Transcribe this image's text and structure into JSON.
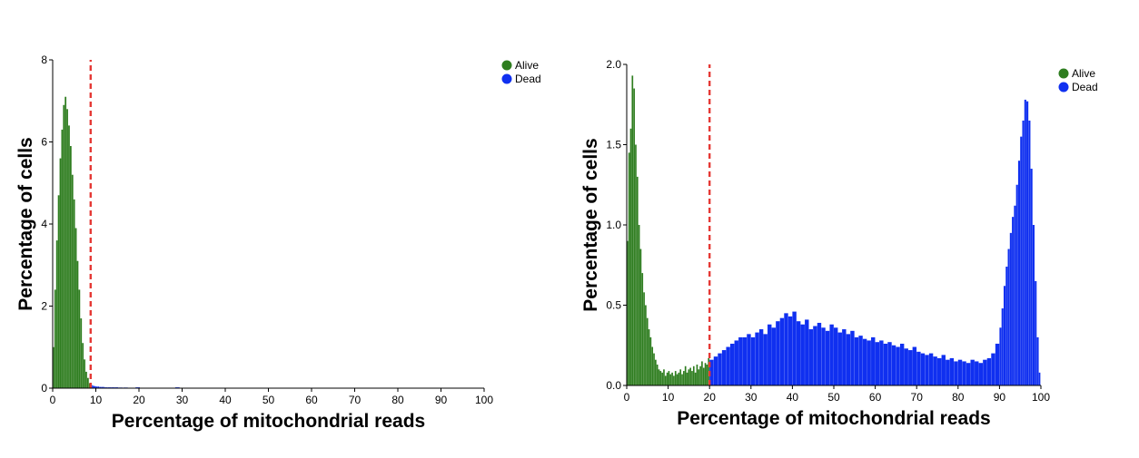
{
  "chart_data": [
    {
      "type": "bar",
      "xlabel": "Percentage of mitochondrial reads",
      "ylabel": "Percentage of cells",
      "xlim": [
        0,
        100
      ],
      "ylim": [
        0,
        8
      ],
      "x_ticks": [
        "0",
        "10",
        "20",
        "30",
        "40",
        "50",
        "60",
        "70",
        "80",
        "90",
        "100"
      ],
      "y_ticks": [
        "0",
        "2",
        "4",
        "6",
        "8"
      ],
      "grid": false,
      "legend": {
        "position": "top-right",
        "items": [
          {
            "label": "Alive",
            "color": "#2e7d1f"
          },
          {
            "label": "Dead",
            "color": "#1030f0"
          }
        ]
      },
      "threshold": {
        "x": 8.8,
        "style": "dashed",
        "color": "#e53935"
      },
      "bin_width": 0.4,
      "series": [
        {
          "name": "Alive",
          "color": "#2e7d1f",
          "x": [
            0.0,
            0.4,
            0.8,
            1.2,
            1.6,
            2.0,
            2.4,
            2.8,
            3.2,
            3.6,
            4.0,
            4.4,
            4.8,
            5.2,
            5.6,
            6.0,
            6.4,
            6.8,
            7.2,
            7.6,
            8.0,
            8.4
          ],
          "values": [
            1.0,
            2.4,
            3.6,
            4.7,
            5.6,
            6.3,
            6.9,
            7.1,
            6.8,
            6.4,
            5.9,
            5.2,
            4.6,
            3.9,
            3.1,
            2.4,
            1.7,
            1.1,
            0.7,
            0.4,
            0.25,
            0.12
          ]
        },
        {
          "name": "Dead",
          "color": "#1030f0",
          "x": [
            8.8,
            9.2,
            9.6,
            10.0,
            10.4,
            10.8,
            11.2,
            11.6,
            12.0,
            12.8,
            13.6,
            14.4,
            15.2,
            16.4,
            17.6,
            19.2,
            20.4,
            22.0,
            24.0,
            26.0,
            28.4,
            31.6,
            36.0,
            41.2
          ],
          "values": [
            0.08,
            0.06,
            0.05,
            0.04,
            0.04,
            0.03,
            0.03,
            0.03,
            0.02,
            0.02,
            0.02,
            0.02,
            0.015,
            0.015,
            0.01,
            0.02,
            0.01,
            0.01,
            0.01,
            0.01,
            0.02,
            0.01,
            0.01,
            0.01
          ]
        }
      ]
    },
    {
      "type": "bar",
      "xlabel": "Percentage of mitochondrial reads",
      "ylabel": "Percentage of cells",
      "xlim": [
        0,
        100
      ],
      "ylim": [
        0,
        2.0
      ],
      "x_ticks": [
        "0",
        "10",
        "20",
        "30",
        "40",
        "50",
        "60",
        "70",
        "80",
        "90",
        "100"
      ],
      "y_ticks": [
        "0.0",
        "0.5",
        "1.0",
        "1.5",
        "2.0"
      ],
      "grid": false,
      "legend": {
        "position": "top-right",
        "items": [
          {
            "label": "Alive",
            "color": "#2e7d1f"
          },
          {
            "label": "Dead",
            "color": "#1030f0"
          }
        ]
      },
      "threshold": {
        "x": 20,
        "style": "dashed",
        "color": "#e53935"
      },
      "bin_width": 0.4,
      "series": [
        {
          "name": "Alive",
          "color": "#2e7d1f",
          "x": [
            0.0,
            0.4,
            0.8,
            1.2,
            1.6,
            2.0,
            2.4,
            2.8,
            3.2,
            3.6,
            4.0,
            4.4,
            4.8,
            5.2,
            5.6,
            6.0,
            6.4,
            6.8,
            7.2,
            7.6,
            8.0,
            8.4,
            8.8,
            9.2,
            9.6,
            10.0,
            10.4,
            10.8,
            11.2,
            11.6,
            12.0,
            12.4,
            12.8,
            13.2,
            13.6,
            14.0,
            14.4,
            14.8,
            15.2,
            15.6,
            16.0,
            16.4,
            16.8,
            17.2,
            17.6,
            18.0,
            18.4,
            18.8,
            19.2,
            19.6
          ],
          "values": [
            0.9,
            1.45,
            1.6,
            1.93,
            1.85,
            1.5,
            1.3,
            1.0,
            0.85,
            0.7,
            0.58,
            0.5,
            0.42,
            0.35,
            0.3,
            0.24,
            0.2,
            0.16,
            0.13,
            0.1,
            0.09,
            0.08,
            0.1,
            0.06,
            0.08,
            0.09,
            0.07,
            0.08,
            0.06,
            0.09,
            0.07,
            0.08,
            0.1,
            0.07,
            0.09,
            0.12,
            0.08,
            0.1,
            0.11,
            0.09,
            0.12,
            0.08,
            0.13,
            0.1,
            0.12,
            0.15,
            0.11,
            0.14,
            0.13,
            0.17
          ]
        },
        {
          "name": "Dead",
          "color": "#1030f0",
          "x": [
            20.0,
            21.0,
            22.0,
            23.0,
            24.0,
            25.0,
            26.0,
            27.0,
            28.0,
            29.0,
            30.0,
            31.0,
            32.0,
            33.0,
            34.0,
            35.0,
            36.0,
            37.0,
            38.0,
            39.0,
            40.0,
            41.0,
            42.0,
            43.0,
            44.0,
            45.0,
            46.0,
            47.0,
            48.0,
            49.0,
            50.0,
            51.0,
            52.0,
            53.0,
            54.0,
            55.0,
            56.0,
            57.0,
            58.0,
            59.0,
            60.0,
            61.0,
            62.0,
            63.0,
            64.0,
            65.0,
            66.0,
            67.0,
            68.0,
            69.0,
            70.0,
            71.0,
            72.0,
            73.0,
            74.0,
            75.0,
            76.0,
            77.0,
            78.0,
            79.0,
            80.0,
            81.0,
            82.0,
            83.0,
            84.0,
            85.0,
            86.0,
            87.0,
            88.0,
            89.0,
            90.0,
            90.5,
            91.0,
            91.5,
            92.0,
            92.5,
            93.0,
            93.5,
            94.0,
            94.5,
            95.0,
            95.5,
            96.0,
            96.5,
            97.0,
            97.5,
            98.0,
            98.5,
            99.0,
            99.5
          ],
          "values": [
            0.16,
            0.18,
            0.2,
            0.22,
            0.24,
            0.26,
            0.28,
            0.3,
            0.3,
            0.32,
            0.3,
            0.33,
            0.35,
            0.32,
            0.38,
            0.36,
            0.4,
            0.42,
            0.45,
            0.43,
            0.46,
            0.4,
            0.38,
            0.41,
            0.35,
            0.37,
            0.39,
            0.36,
            0.34,
            0.38,
            0.36,
            0.33,
            0.35,
            0.32,
            0.34,
            0.3,
            0.31,
            0.29,
            0.28,
            0.3,
            0.27,
            0.28,
            0.26,
            0.27,
            0.25,
            0.24,
            0.26,
            0.23,
            0.22,
            0.24,
            0.21,
            0.2,
            0.19,
            0.2,
            0.18,
            0.17,
            0.19,
            0.16,
            0.17,
            0.15,
            0.16,
            0.15,
            0.14,
            0.16,
            0.15,
            0.14,
            0.16,
            0.17,
            0.2,
            0.26,
            0.36,
            0.48,
            0.62,
            0.74,
            0.85,
            0.95,
            1.05,
            1.12,
            1.25,
            1.4,
            1.55,
            1.65,
            1.78,
            1.77,
            1.65,
            1.35,
            1.0,
            0.65,
            0.3,
            0.08
          ]
        }
      ]
    }
  ]
}
